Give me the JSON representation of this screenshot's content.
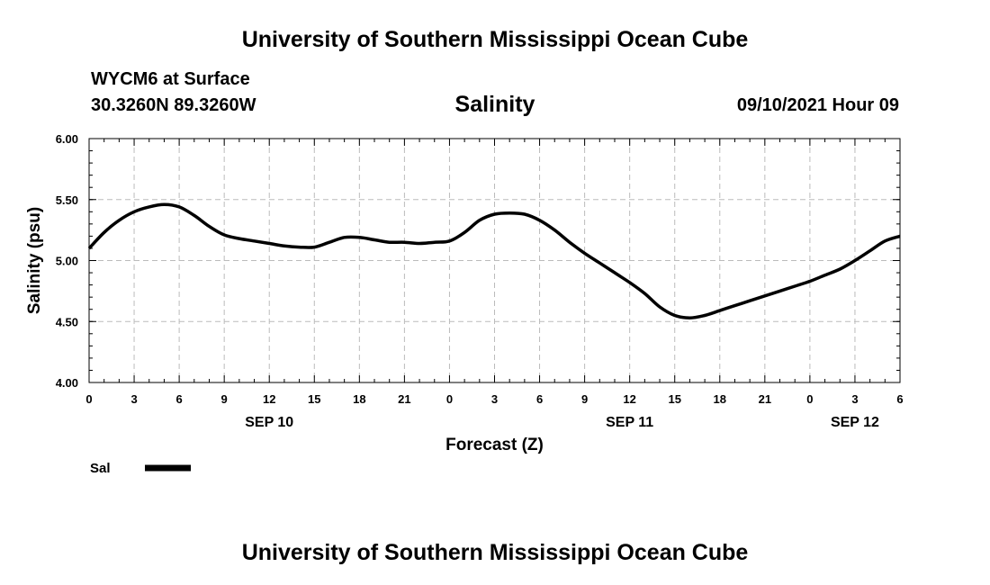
{
  "header": {
    "title": "University of Southern Mississippi Ocean Cube",
    "station": "WYCM6 at Surface",
    "coords": "30.3260N  89.3260W",
    "chart_title": "Salinity",
    "datetime": "09/10/2021 Hour 09"
  },
  "footer": {
    "title": "University of Southern Mississippi Ocean Cube"
  },
  "chart_data": {
    "type": "line",
    "title": "Salinity",
    "xlabel": "Forecast (Z)",
    "ylabel": "Salinity (psu)",
    "ylim": [
      4.0,
      6.0
    ],
    "yticks": [
      "4.00",
      "4.50",
      "5.00",
      "5.50",
      "6.00"
    ],
    "xticks": [
      "0",
      "3",
      "6",
      "9",
      "12",
      "15",
      "18",
      "21",
      "0",
      "3",
      "6",
      "9",
      "12",
      "15",
      "18",
      "21",
      "0",
      "3",
      "6"
    ],
    "date_labels": [
      {
        "label": "SEP 10",
        "hour_index": 12
      },
      {
        "label": "SEP 11",
        "hour_index": 36
      },
      {
        "label": "SEP 12",
        "hour_index": 51
      }
    ],
    "grid": true,
    "legend": {
      "position": "bottom-left",
      "entries": [
        "Sal"
      ]
    },
    "series": [
      {
        "name": "Sal",
        "color": "#000000",
        "x": [
          0,
          1,
          2,
          3,
          4,
          5,
          6,
          7,
          8,
          9,
          10,
          11,
          12,
          13,
          14,
          15,
          16,
          17,
          18,
          19,
          20,
          21,
          22,
          23,
          24,
          25,
          26,
          27,
          28,
          29,
          30,
          31,
          32,
          33,
          34,
          35,
          36,
          37,
          38,
          39,
          40,
          41,
          42,
          43,
          44,
          45,
          46,
          47,
          48,
          49,
          50,
          51,
          52,
          53,
          54
        ],
        "values": [
          5.1,
          5.23,
          5.33,
          5.4,
          5.44,
          5.46,
          5.44,
          5.37,
          5.28,
          5.21,
          5.18,
          5.16,
          5.14,
          5.12,
          5.11,
          5.11,
          5.15,
          5.19,
          5.19,
          5.17,
          5.15,
          5.15,
          5.14,
          5.15,
          5.16,
          5.23,
          5.33,
          5.38,
          5.39,
          5.38,
          5.33,
          5.25,
          5.15,
          5.06,
          4.98,
          4.9,
          4.82,
          4.73,
          4.62,
          4.55,
          4.53,
          4.55,
          4.59,
          4.63,
          4.67,
          4.71,
          4.75,
          4.79,
          4.83,
          4.88,
          4.93,
          5.0,
          5.08,
          5.16,
          5.2
        ]
      }
    ]
  }
}
